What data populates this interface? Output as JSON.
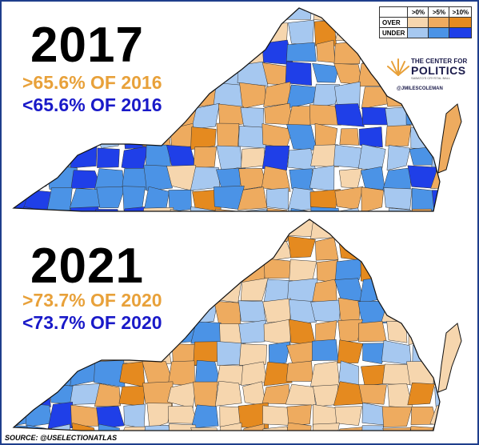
{
  "panels": [
    {
      "year": "2017",
      "over_label": ">65.6% OF 2016",
      "under_label": "<65.6% OF 2016"
    },
    {
      "year": "2021",
      "over_label": ">73.7% OF 2020",
      "under_label": "<73.7% OF 2020"
    }
  ],
  "legend": {
    "columns": [
      ">0%",
      ">5%",
      ">10%"
    ],
    "rows": [
      {
        "label": "OVER",
        "colors": [
          "#f6d6ae",
          "#eeab5f",
          "#e58a1f"
        ]
      },
      {
        "label": "UNDER",
        "colors": [
          "#a6c8f0",
          "#4b93e6",
          "#1f3fe8"
        ]
      }
    ]
  },
  "logo": {
    "line1": "THE CENTER FOR",
    "line2": "POLITICS",
    "tagline": "SABATO'S CRYSTAL BALL",
    "handle": "@JMILESCOLEMAN",
    "accent": "#e8a13a"
  },
  "source": "SOURCE: @USELECTIONATLAS",
  "colors": {
    "over": "#e8a13a",
    "under": "#1919c8",
    "border": "#1f3e8c",
    "county_line": "#333333"
  }
}
